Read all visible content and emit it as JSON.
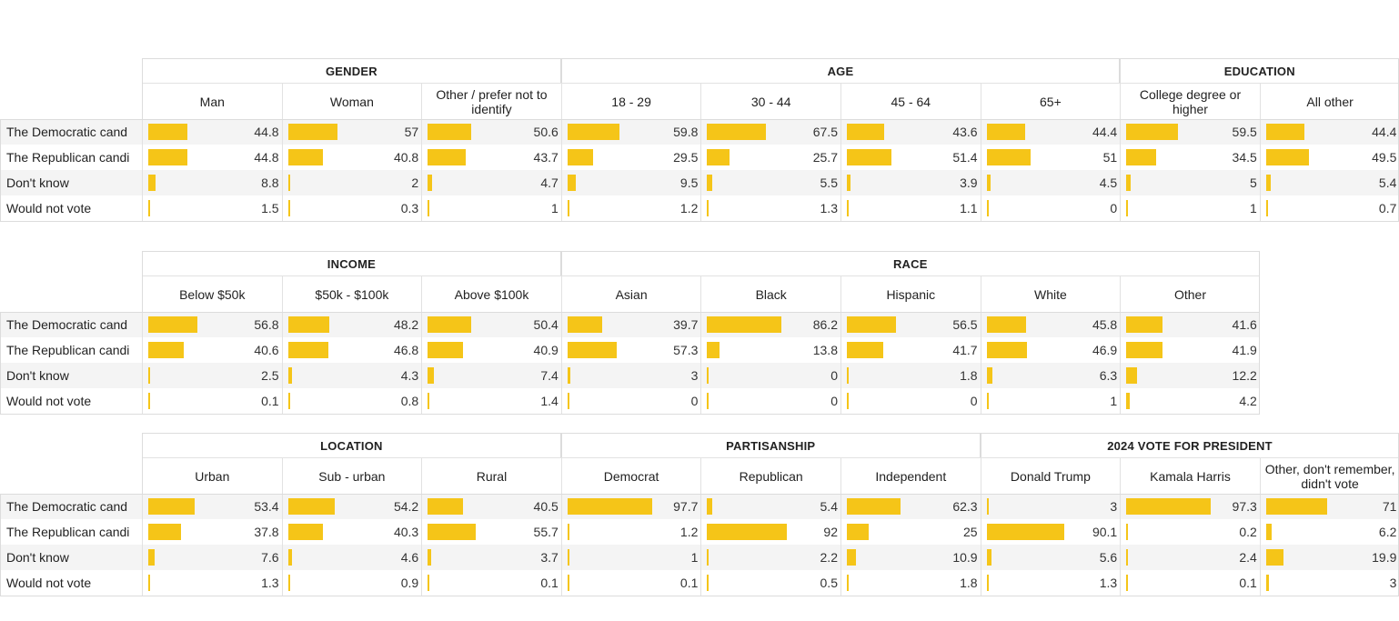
{
  "rows": [
    "The Democratic cand",
    "The Republican candi",
    "Don't know",
    "Would not vote"
  ],
  "colors": {
    "bar": "#f5c518"
  },
  "chart_data": [
    {
      "type": "table",
      "groups": [
        {
          "name": "GENDER",
          "columns": [
            {
              "label": "Man",
              "values": [
                44.8,
                44.8,
                8.8,
                1.5
              ]
            },
            {
              "label": "Woman",
              "values": [
                57,
                40.8,
                2,
                0.3
              ]
            },
            {
              "label": "Other / prefer not to identify",
              "values": [
                50.6,
                43.7,
                4.7,
                1
              ]
            }
          ]
        },
        {
          "name": "AGE",
          "columns": [
            {
              "label": "18 - 29",
              "values": [
                59.8,
                29.5,
                9.5,
                1.2
              ]
            },
            {
              "label": "30 - 44",
              "values": [
                67.5,
                25.7,
                5.5,
                1.3
              ]
            },
            {
              "label": "45 - 64",
              "values": [
                43.6,
                51.4,
                3.9,
                1.1
              ]
            },
            {
              "label": "65+",
              "values": [
                44.4,
                51,
                4.5,
                0
              ]
            }
          ]
        },
        {
          "name": "EDUCATION",
          "columns": [
            {
              "label": "College degree or higher",
              "values": [
                59.5,
                34.5,
                5,
                1
              ]
            },
            {
              "label": "All other",
              "values": [
                44.4,
                49.5,
                5.4,
                0.7
              ]
            }
          ]
        }
      ]
    },
    {
      "type": "table",
      "groups": [
        {
          "name": "INCOME",
          "columns": [
            {
              "label": "Below $50k",
              "values": [
                56.8,
                40.6,
                2.5,
                0.1
              ]
            },
            {
              "label": "$50k - $100k",
              "values": [
                48.2,
                46.8,
                4.3,
                0.8
              ]
            },
            {
              "label": "Above $100k",
              "values": [
                50.4,
                40.9,
                7.4,
                1.4
              ]
            }
          ]
        },
        {
          "name": "RACE",
          "columns": [
            {
              "label": "Asian",
              "values": [
                39.7,
                57.3,
                3,
                0
              ]
            },
            {
              "label": "Black",
              "values": [
                86.2,
                13.8,
                0,
                0
              ]
            },
            {
              "label": "Hispanic",
              "values": [
                56.5,
                41.7,
                1.8,
                0
              ]
            },
            {
              "label": "White",
              "values": [
                45.8,
                46.9,
                6.3,
                1
              ]
            },
            {
              "label": "Other",
              "values": [
                41.6,
                41.9,
                12.2,
                4.2
              ]
            }
          ]
        }
      ]
    },
    {
      "type": "table",
      "groups": [
        {
          "name": "LOCATION",
          "columns": [
            {
              "label": "Urban",
              "values": [
                53.4,
                37.8,
                7.6,
                1.3
              ]
            },
            {
              "label": "Sub - urban",
              "values": [
                54.2,
                40.3,
                4.6,
                0.9
              ]
            },
            {
              "label": "Rural",
              "values": [
                40.5,
                55.7,
                3.7,
                0.1
              ]
            }
          ]
        },
        {
          "name": "PARTISANSHIP",
          "columns": [
            {
              "label": "Democrat",
              "values": [
                97.7,
                1.2,
                1,
                0.1
              ]
            },
            {
              "label": "Republican",
              "values": [
                5.4,
                92,
                2.2,
                0.5
              ]
            },
            {
              "label": "Independent",
              "values": [
                62.3,
                25,
                10.9,
                1.8
              ]
            }
          ]
        },
        {
          "name": "2024 VOTE FOR PRESIDENT",
          "columns": [
            {
              "label": "Donald Trump",
              "values": [
                3,
                90.1,
                5.6,
                1.3
              ]
            },
            {
              "label": "Kamala Harris",
              "values": [
                97.3,
                0.2,
                2.4,
                0.1
              ]
            },
            {
              "label": "Other, don't remember, didn't vote",
              "values": [
                71,
                6.2,
                19.9,
                3
              ]
            }
          ]
        }
      ]
    }
  ]
}
